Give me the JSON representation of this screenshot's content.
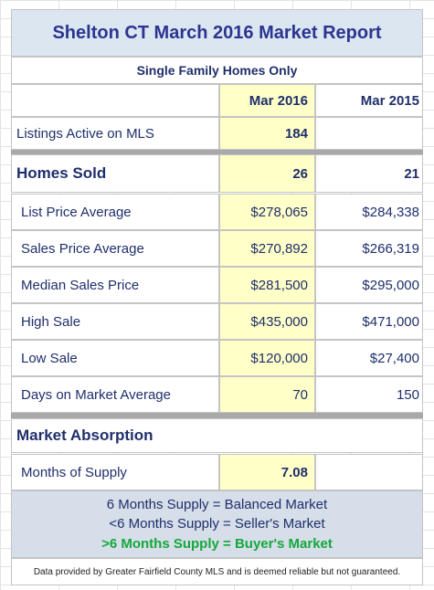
{
  "title": "Shelton CT March 2016 Market Report",
  "subtitle": "Single Family Homes Only",
  "columns": [
    "Mar 2016",
    "Mar 2015"
  ],
  "rows": [
    {
      "label": "Listings Active on MLS",
      "values": [
        "184"
      ]
    },
    {
      "label": "Homes Sold",
      "values": [
        "26",
        "21"
      ]
    },
    {
      "label": "List Price Average",
      "values": [
        "$278,065",
        "$284,338"
      ]
    },
    {
      "label": "Sales Price Average",
      "values": [
        "$270,892",
        "$266,319"
      ]
    },
    {
      "label": "Median Sales Price",
      "values": [
        "$281,500",
        "$295,000"
      ]
    },
    {
      "label": "High Sale",
      "values": [
        "$435,000",
        "$471,000"
      ]
    },
    {
      "label": "Low Sale",
      "values": [
        "$120,000",
        "$27,400"
      ]
    },
    {
      "label": "Days on Market Average",
      "values": [
        "70",
        "150"
      ]
    }
  ],
  "absorption": {
    "title": "Market Absorption",
    "rows": [
      {
        "label": "Months of Supply",
        "values": [
          "7.08"
        ]
      }
    ]
  },
  "notes": [
    "6 Months Supply = Balanced Market",
    "<6 Months Supply = Seller's Market",
    ">6 Months Supply = Buyer's Market"
  ],
  "footer": "Data provided by Greater Fairfield County MLS and is deemed reliable but not guaranteed."
}
